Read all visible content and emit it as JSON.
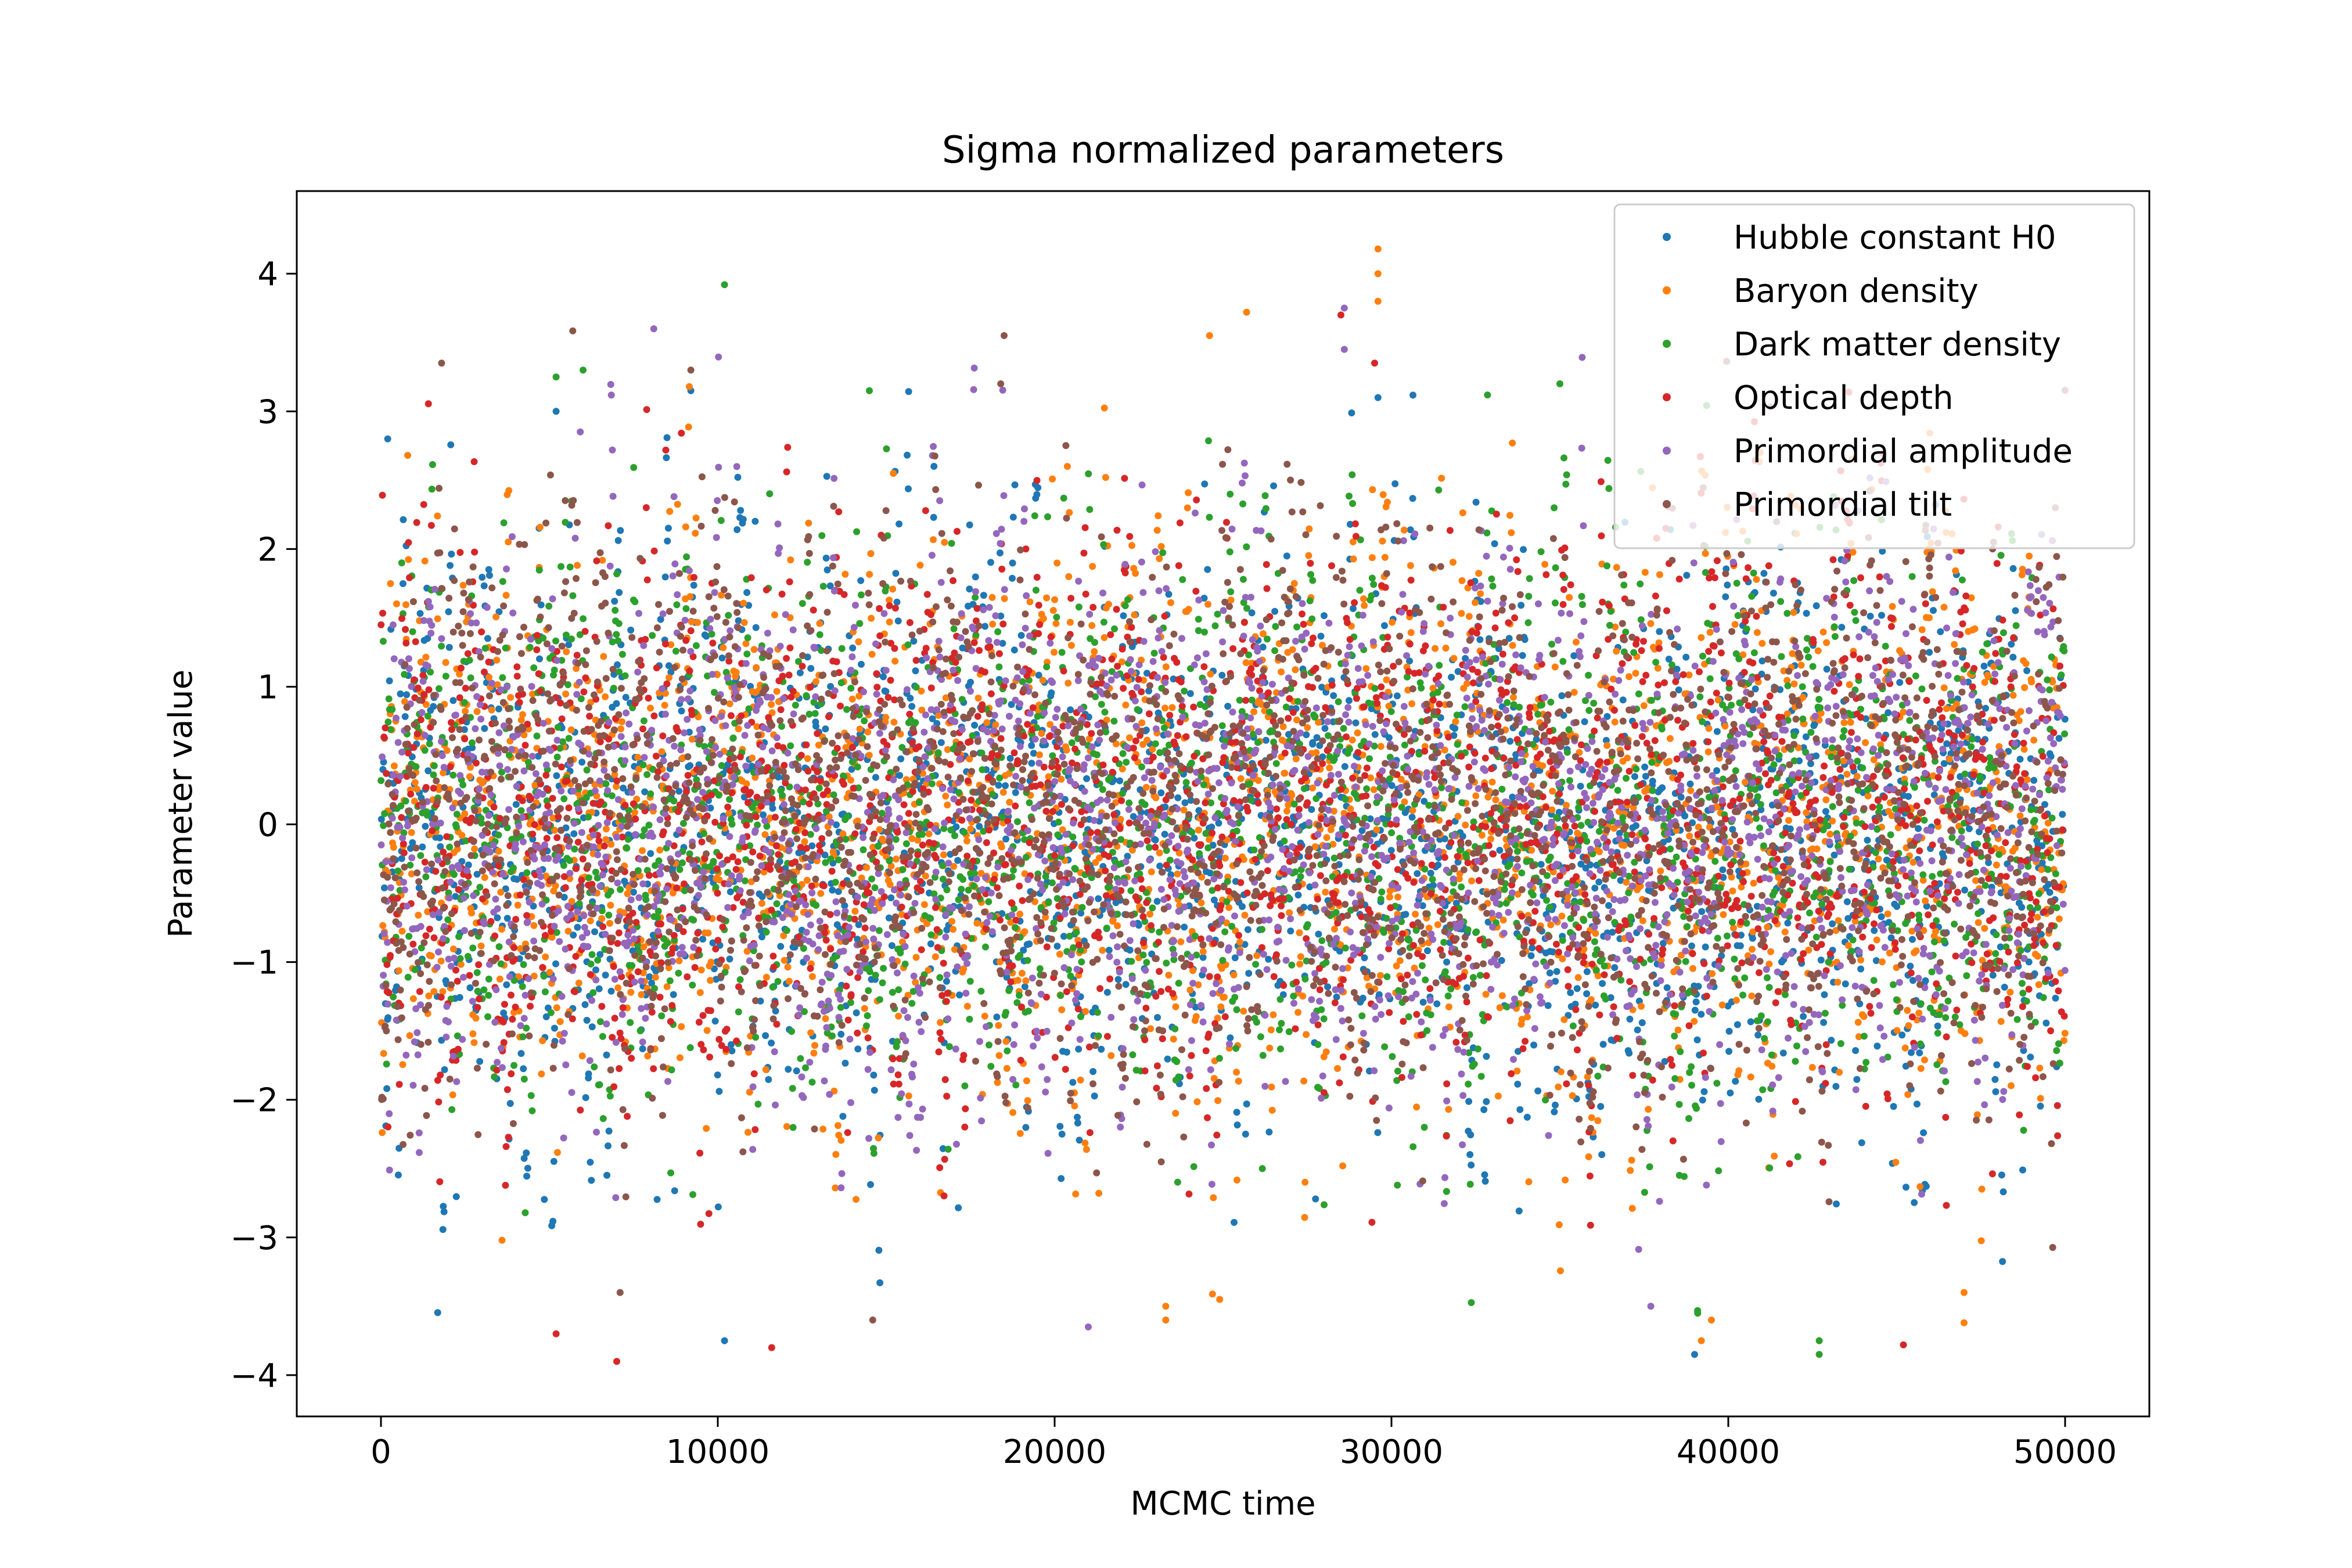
{
  "chart_data": {
    "type": "scatter",
    "title": "Sigma normalized parameters",
    "xlabel": "MCMC time",
    "ylabel": "Parameter value",
    "xlim": [
      -2500,
      52500
    ],
    "ylim": [
      -4.3,
      4.6
    ],
    "x_ticks": [
      0,
      10000,
      20000,
      30000,
      40000,
      50000
    ],
    "x_tick_labels": [
      "0",
      "10000",
      "20000",
      "30000",
      "40000",
      "50000"
    ],
    "y_ticks": [
      -4,
      -3,
      -2,
      -1,
      0,
      1,
      2,
      3,
      4
    ],
    "y_tick_labels": [
      "−4",
      "−3",
      "−2",
      "−1",
      "0",
      "1",
      "2",
      "3",
      "4"
    ],
    "grid": false,
    "legend": "top-right",
    "samples": 50000,
    "series": [
      {
        "name": "Hubble constant H0",
        "color": "#1f77b4",
        "mean": 0,
        "std": 1.0,
        "extremes": [
          [
            10200,
            -3.75
          ],
          [
            39000,
            -3.85
          ],
          [
            9200,
            3.15
          ],
          [
            29600,
            3.1
          ],
          [
            5200,
            3.0
          ],
          [
            200,
            2.8
          ]
        ]
      },
      {
        "name": "Baryon density",
        "color": "#ff7f0e",
        "mean": 0,
        "std": 1.0,
        "extremes": [
          [
            29600,
            4.18
          ],
          [
            29600,
            4.0
          ],
          [
            29600,
            3.8
          ],
          [
            25700,
            3.72
          ],
          [
            24600,
            3.55
          ],
          [
            23300,
            -3.6
          ],
          [
            23300,
            -3.5
          ],
          [
            24900,
            -3.45
          ],
          [
            47000,
            -3.62
          ],
          [
            47000,
            -3.4
          ],
          [
            39500,
            -3.6
          ],
          [
            39200,
            -3.75
          ]
        ]
      },
      {
        "name": "Dark matter density",
        "color": "#2ca02c",
        "mean": 0,
        "std": 1.0,
        "extremes": [
          [
            10200,
            3.92
          ],
          [
            5200,
            3.25
          ],
          [
            6000,
            3.3
          ],
          [
            14500,
            3.15
          ],
          [
            42700,
            -3.85
          ],
          [
            42700,
            -3.75
          ],
          [
            35000,
            3.2
          ]
        ]
      },
      {
        "name": "Optical depth",
        "color": "#d62728",
        "mean": 0,
        "std": 1.0,
        "extremes": [
          [
            7000,
            -3.9
          ],
          [
            5200,
            -3.7
          ],
          [
            11600,
            -3.8
          ],
          [
            45200,
            -3.78
          ],
          [
            29500,
            3.35
          ],
          [
            28500,
            3.7
          ]
        ]
      },
      {
        "name": "Primordial amplitude",
        "color": "#9467bd",
        "mean": 0,
        "std": 1.0,
        "extremes": [
          [
            8100,
            3.6
          ],
          [
            28600,
            3.75
          ],
          [
            28600,
            3.45
          ],
          [
            21000,
            -3.65
          ],
          [
            37700,
            -3.5
          ]
        ]
      },
      {
        "name": "Primordial tilt",
        "color": "#8c564b",
        "mean": 0,
        "std": 1.0,
        "extremes": [
          [
            18500,
            3.55
          ],
          [
            1800,
            3.35
          ],
          [
            9200,
            3.3
          ],
          [
            18400,
            3.2
          ],
          [
            14600,
            -3.6
          ],
          [
            7100,
            -3.4
          ]
        ]
      }
    ]
  }
}
